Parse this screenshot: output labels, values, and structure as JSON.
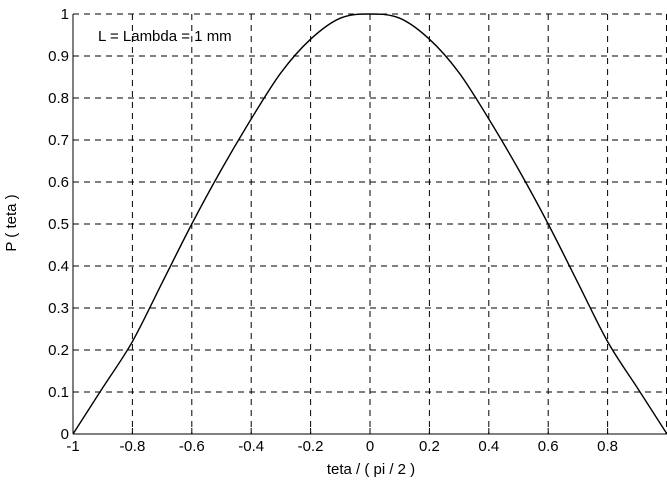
{
  "chart_data": {
    "type": "line",
    "title": "",
    "xlabel": "teta / ( pi / 2 )",
    "ylabel": "P ( teta )",
    "xlim": [
      -1,
      1
    ],
    "ylim": [
      0,
      1
    ],
    "x_ticks": [
      -1,
      -0.8,
      -0.6,
      -0.4,
      -0.2,
      0,
      0.2,
      0.4,
      0.6,
      0.8
    ],
    "x_tick_labels": [
      "-1",
      "-0.8",
      "-0.6",
      "-0.4",
      "-0.2",
      "0",
      "0.2",
      "0.4",
      "0.6",
      "0.8"
    ],
    "y_ticks": [
      0,
      0.1,
      0.2,
      0.3,
      0.4,
      0.5,
      0.6,
      0.7,
      0.8,
      0.9,
      1
    ],
    "y_tick_labels": [
      "0",
      "0.1",
      "0.2",
      "0.3",
      "0.4",
      "0.5",
      "0.6",
      "0.7",
      "0.8",
      "0.9",
      "1"
    ],
    "grid": true,
    "annotation": "L = Lambda = 1 mm",
    "series": [
      {
        "x": [
          -1,
          -0.9,
          -0.8,
          -0.7,
          -0.6,
          -0.5,
          -0.4,
          -0.3,
          -0.2,
          -0.1,
          0,
          0.1,
          0.2,
          0.3,
          0.4,
          0.5,
          0.6,
          0.7,
          0.8,
          0.9,
          1
        ],
        "y": [
          0,
          0.11,
          0.22,
          0.36,
          0.5,
          0.63,
          0.75,
          0.86,
          0.94,
          0.99,
          1,
          0.99,
          0.94,
          0.86,
          0.75,
          0.63,
          0.5,
          0.36,
          0.22,
          0.11,
          0
        ]
      }
    ],
    "colors": {
      "line": "#000000",
      "grid": "#000000",
      "axes": "#000000"
    }
  }
}
